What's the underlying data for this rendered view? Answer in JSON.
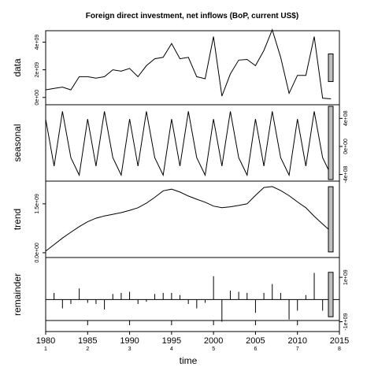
{
  "chart_data": {
    "type": "line",
    "title": "Foreign direct investment, net inflows (BoP, current US$)",
    "xlabel": "time",
    "x_axis": {
      "range": [
        1980,
        2015
      ],
      "ticks": [
        1980,
        1985,
        1990,
        1995,
        2000,
        2005,
        2010,
        2015
      ],
      "tick_labels": [
        "1980",
        "1985",
        "1990",
        "1995",
        "2000",
        "2005",
        "2010",
        "2015"
      ],
      "cycle_labels": [
        "1",
        "2",
        "3",
        "4",
        "5",
        "6",
        "7",
        "8"
      ]
    },
    "panels": [
      {
        "name": "data",
        "ylabel": "data",
        "ylim": [
          -300000000.0,
          4600000000.0
        ],
        "yticks": [
          0,
          2000000000,
          4000000000
        ],
        "ytick_labels": [
          "0e+00",
          "2e+09",
          "4e+09"
        ],
        "axis_side": "left",
        "style": "line",
        "x": [
          1980,
          1981,
          1982,
          1983,
          1984,
          1985,
          1986,
          1987,
          1988,
          1989,
          1990,
          1991,
          1992,
          1993,
          1994,
          1995,
          1996,
          1997,
          1998,
          1999,
          2000,
          2001,
          2002,
          2003,
          2004,
          2005,
          2006,
          2007,
          2008,
          2009,
          2010,
          2011,
          2012,
          2013,
          2014
        ],
        "values": [
          550000000.0,
          650000000.0,
          750000000.0,
          550000000.0,
          1500000000.0,
          1500000000.0,
          1400000000.0,
          1500000000.0,
          2000000000.0,
          1900000000.0,
          2100000000.0,
          1500000000.0,
          2300000000.0,
          2800000000.0,
          2900000000.0,
          3900000000.0,
          2800000000.0,
          2900000000.0,
          1500000000.0,
          1350000000.0,
          4400000000.0,
          100000000.0,
          1700000000.0,
          2700000000.0,
          2750000000.0,
          2300000000.0,
          3400000000.0,
          4900000000.0,
          2900000000.0,
          300000000.0,
          1600000000.0,
          1600000000.0,
          4400000000.0,
          -50000000.0,
          -100000000.0
        ],
        "scale_bar": 2000000000
      },
      {
        "name": "seasonal",
        "ylabel": "seasonal",
        "ylim": [
          -450000000.0,
          550000000.0
        ],
        "yticks": [
          -400000000,
          0,
          400000000
        ],
        "ytick_labels": [
          "-4e+08",
          "0e+00",
          "4e+08"
        ],
        "axis_side": "right",
        "style": "line",
        "x": [
          1980,
          1981,
          1982,
          1983,
          1984,
          1985,
          1986,
          1987,
          1988,
          1989,
          1990,
          1991,
          1992,
          1993,
          1994,
          1995,
          1996,
          1997,
          1998,
          1999,
          2000,
          2001,
          2002,
          2003,
          2004,
          2005,
          2006,
          2007,
          2008,
          2009,
          2010,
          2011,
          2012,
          2013,
          2014
        ],
        "values": [
          390000000.0,
          -280000000.0,
          500000000.0,
          -160000000.0,
          -410000000.0,
          390000000.0,
          -280000000.0,
          500000000.0,
          -160000000.0,
          -410000000.0,
          390000000.0,
          -280000000.0,
          500000000.0,
          -160000000.0,
          -410000000.0,
          390000000.0,
          -280000000.0,
          500000000.0,
          -160000000.0,
          -410000000.0,
          390000000.0,
          -280000000.0,
          500000000.0,
          -160000000.0,
          -410000000.0,
          390000000.0,
          -280000000.0,
          500000000.0,
          -160000000.0,
          -410000000.0,
          390000000.0,
          -280000000.0,
          500000000.0,
          -160000000.0,
          -410000000.0
        ],
        "scale_bar": 2000000000
      },
      {
        "name": "trend",
        "ylabel": "trend",
        "ylim": [
          -50000000.0,
          2100000000.0
        ],
        "yticks": [
          0,
          1500000000
        ],
        "ytick_labels": [
          "0.0e+00",
          "1.5e+09"
        ],
        "axis_side": "left",
        "style": "line",
        "x": [
          1980,
          1981,
          1982,
          1983,
          1984,
          1985,
          1986,
          1987,
          1988,
          1989,
          1990,
          1991,
          1992,
          1993,
          1994,
          1995,
          1996,
          1997,
          1998,
          1999,
          2000,
          2001,
          2002,
          2003,
          2004,
          2005,
          2006,
          2007,
          2008,
          2009,
          2010,
          2011,
          2012,
          2013,
          2014
        ],
        "values": [
          50000000.0,
          250000000.0,
          450000000.0,
          630000000.0,
          800000000.0,
          950000000.0,
          1060000000.0,
          1130000000.0,
          1180000000.0,
          1230000000.0,
          1300000000.0,
          1380000000.0,
          1520000000.0,
          1700000000.0,
          1900000000.0,
          1950000000.0,
          1860000000.0,
          1740000000.0,
          1640000000.0,
          1550000000.0,
          1430000000.0,
          1380000000.0,
          1410000000.0,
          1450000000.0,
          1500000000.0,
          1760000000.0,
          2000000000.0,
          2030000000.0,
          1910000000.0,
          1750000000.0,
          1560000000.0,
          1380000000.0,
          1120000000.0,
          880000000.0,
          650000000.0
        ],
        "scale_bar": 2000000000
      },
      {
        "name": "remainder",
        "ylabel": "remainder",
        "ylim": [
          -1300000000.0,
          1750000000.0
        ],
        "yticks": [
          -1000000000,
          1000000000
        ],
        "ytick_labels": [
          "-1e+09",
          "1e+09"
        ],
        "axis_side": "right",
        "style": "spikes",
        "x": [
          1980,
          1981,
          1982,
          1983,
          1984,
          1985,
          1986,
          1987,
          1988,
          1989,
          1990,
          1991,
          1992,
          1993,
          1994,
          1995,
          1996,
          1997,
          1998,
          1999,
          2000,
          2001,
          2002,
          2003,
          2004,
          2005,
          2006,
          2007,
          2008,
          2009,
          2010,
          2011,
          2012,
          2013,
          2014
        ],
        "values": [
          150000000.0,
          300000000.0,
          -400000000.0,
          -200000000.0,
          500000000.0,
          -150000000.0,
          -200000000.0,
          -450000000.0,
          250000000.0,
          300000000.0,
          350000000.0,
          -200000000.0,
          -100000000.0,
          250000000.0,
          300000000.0,
          300000000.0,
          200000000.0,
          -200000000.0,
          -400000000.0,
          -150000000.0,
          1050000000.0,
          -1000000000.0,
          400000000.0,
          350000000.0,
          300000000.0,
          -600000000.0,
          300000000.0,
          700000000.0,
          300000000.0,
          -900000000.0,
          -500000000.0,
          200000000.0,
          1200000000.0,
          -500000000.0,
          -700000000.0
        ],
        "scale_bar": 2000000000
      }
    ],
    "grid": false,
    "legend": "none"
  }
}
